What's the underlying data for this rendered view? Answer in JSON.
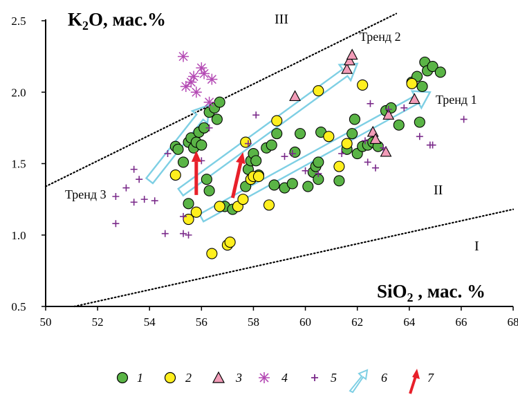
{
  "chart_data": {
    "type": "scatter",
    "xlabel": "SiO2 , мас. %",
    "ylabel": "K2O, мас.%",
    "xlim": [
      50,
      68
    ],
    "ylim": [
      0.5,
      2.5
    ],
    "x_ticks": [
      "50",
      "52",
      "54",
      "56",
      "58",
      "60",
      "62",
      "64",
      "66",
      "68"
    ],
    "y_ticks": [
      "0.5",
      "1.0",
      "1.5",
      "2.0",
      "2.5"
    ],
    "regions": [
      "I",
      "II",
      "III"
    ],
    "trend_labels": [
      "Тренд 1",
      "Тренд 2",
      "Тренд 3"
    ],
    "legend_numbers": [
      "1",
      "2",
      "3",
      "4",
      "5",
      "6",
      "7"
    ],
    "colors": {
      "green": "#5ab446",
      "yellow": "#ffef1e",
      "pink": "#f29cb8",
      "magenta": "#b44ab4",
      "purple": "#7a2a8a",
      "cyan": "#7ecfe4",
      "red": "#e8202a"
    },
    "series": [
      {
        "marker": "green-circle",
        "points": [
          [
            55.0,
            1.62
          ],
          [
            55.1,
            1.6
          ],
          [
            55.3,
            1.51
          ],
          [
            55.5,
            1.22
          ],
          [
            55.5,
            1.65
          ],
          [
            55.6,
            1.68
          ],
          [
            55.7,
            1.61
          ],
          [
            55.8,
            1.65
          ],
          [
            56.0,
            1.63
          ],
          [
            55.9,
            1.72
          ],
          [
            56.1,
            1.75
          ],
          [
            56.3,
            1.86
          ],
          [
            56.5,
            1.89
          ],
          [
            56.6,
            1.81
          ],
          [
            56.7,
            1.93
          ],
          [
            56.2,
            1.39
          ],
          [
            56.3,
            1.31
          ],
          [
            56.9,
            1.2
          ],
          [
            57.2,
            1.18
          ],
          [
            57.7,
            1.34
          ],
          [
            57.8,
            1.46
          ],
          [
            57.9,
            1.52
          ],
          [
            58.0,
            1.57
          ],
          [
            58.1,
            1.52
          ],
          [
            58.2,
            1.42
          ],
          [
            58.5,
            1.61
          ],
          [
            58.7,
            1.63
          ],
          [
            58.8,
            1.35
          ],
          [
            58.9,
            1.71
          ],
          [
            59.2,
            1.33
          ],
          [
            59.5,
            1.36
          ],
          [
            59.6,
            1.58
          ],
          [
            59.8,
            1.71
          ],
          [
            60.1,
            1.34
          ],
          [
            60.3,
            1.44
          ],
          [
            60.4,
            1.48
          ],
          [
            60.5,
            1.51
          ],
          [
            60.5,
            1.39
          ],
          [
            60.6,
            1.72
          ],
          [
            61.3,
            1.38
          ],
          [
            61.6,
            1.6
          ],
          [
            61.8,
            1.71
          ],
          [
            61.9,
            1.81
          ],
          [
            62.0,
            1.57
          ],
          [
            62.2,
            1.62
          ],
          [
            62.4,
            1.63
          ],
          [
            62.6,
            1.65
          ],
          [
            62.8,
            1.62
          ],
          [
            63.1,
            1.87
          ],
          [
            63.3,
            1.89
          ],
          [
            63.6,
            1.77
          ],
          [
            64.1,
            2.07
          ],
          [
            64.3,
            2.11
          ],
          [
            64.4,
            1.79
          ],
          [
            64.5,
            2.04
          ],
          [
            64.6,
            2.21
          ],
          [
            64.7,
            2.15
          ],
          [
            64.9,
            2.18
          ],
          [
            65.2,
            2.14
          ]
        ]
      },
      {
        "marker": "yellow-circle",
        "points": [
          [
            55.0,
            1.42
          ],
          [
            55.5,
            1.11
          ],
          [
            55.8,
            1.16
          ],
          [
            56.4,
            0.87
          ],
          [
            56.7,
            1.2
          ],
          [
            57.0,
            0.93
          ],
          [
            57.1,
            0.95
          ],
          [
            57.4,
            1.2
          ],
          [
            57.6,
            1.25
          ],
          [
            57.7,
            1.65
          ],
          [
            57.9,
            1.39
          ],
          [
            58.0,
            1.41
          ],
          [
            58.2,
            1.41
          ],
          [
            58.6,
            1.21
          ],
          [
            58.9,
            1.8
          ],
          [
            60.5,
            2.01
          ],
          [
            60.9,
            1.69
          ],
          [
            61.3,
            1.48
          ],
          [
            61.6,
            1.64
          ],
          [
            62.2,
            2.05
          ],
          [
            64.1,
            2.06
          ]
        ]
      },
      {
        "marker": "pink-triangle",
        "points": [
          [
            59.6,
            1.97
          ],
          [
            61.6,
            2.16
          ],
          [
            61.7,
            2.22
          ],
          [
            61.8,
            2.26
          ],
          [
            62.6,
            1.72
          ],
          [
            62.7,
            1.67
          ],
          [
            63.1,
            1.58
          ],
          [
            63.2,
            1.84
          ],
          [
            64.2,
            1.95
          ]
        ]
      },
      {
        "marker": "magenta-star",
        "points": [
          [
            55.3,
            2.25
          ],
          [
            55.7,
            2.11
          ],
          [
            55.4,
            2.04
          ],
          [
            55.8,
            2.0
          ],
          [
            56.0,
            2.17
          ],
          [
            56.1,
            2.13
          ],
          [
            56.4,
            2.09
          ],
          [
            55.6,
            2.07
          ],
          [
            56.3,
            1.93
          ]
        ]
      },
      {
        "marker": "purple-plus",
        "points": [
          [
            52.7,
            1.08
          ],
          [
            52.7,
            1.27
          ],
          [
            53.1,
            1.33
          ],
          [
            53.4,
            1.23
          ],
          [
            53.4,
            1.46
          ],
          [
            53.6,
            1.39
          ],
          [
            53.8,
            1.25
          ],
          [
            54.2,
            1.24
          ],
          [
            54.6,
            1.01
          ],
          [
            54.7,
            1.57
          ],
          [
            55.3,
            1.01
          ],
          [
            55.5,
            1.0
          ],
          [
            55.3,
            1.13
          ],
          [
            56.0,
            1.52
          ],
          [
            56.3,
            1.75
          ],
          [
            57.8,
            1.64
          ],
          [
            58.1,
            1.84
          ],
          [
            59.2,
            1.55
          ],
          [
            59.5,
            1.57
          ],
          [
            60.0,
            1.45
          ],
          [
            60.5,
            1.43
          ],
          [
            61.4,
            1.57
          ],
          [
            62.3,
            1.66
          ],
          [
            62.4,
            1.51
          ],
          [
            62.5,
            1.92
          ],
          [
            62.7,
            1.47
          ],
          [
            63.0,
            1.61
          ],
          [
            63.2,
            1.88
          ],
          [
            63.8,
            1.89
          ],
          [
            64.4,
            1.69
          ],
          [
            64.8,
            1.63
          ],
          [
            64.9,
            1.63
          ],
          [
            66.1,
            1.81
          ]
        ]
      }
    ],
    "trend_arrows": [
      {
        "name": "trend-3-arrow",
        "from": [
          54.0,
          1.38
        ],
        "to": [
          56.3,
          1.91
        ]
      },
      {
        "name": "trend-2-arrow",
        "from": [
          55.2,
          1.3
        ],
        "to": [
          62.0,
          2.2
        ]
      },
      {
        "name": "trend-1-arrow",
        "from": [
          56.0,
          1.12
        ],
        "to": [
          64.8,
          2.0
        ]
      }
    ],
    "red_arrows": [
      {
        "name": "red-arrow-1",
        "from": [
          55.8,
          1.28
        ],
        "to": [
          55.8,
          1.59
        ]
      },
      {
        "name": "red-arrow-2",
        "from": [
          57.2,
          1.26
        ],
        "to": [
          57.6,
          1.58
        ]
      }
    ],
    "boundary_lines": [
      {
        "name": "boundary-I-II",
        "from": [
          51.1,
          0.5
        ],
        "to": [
          68.0,
          1.18
        ]
      },
      {
        "name": "boundary-II-III",
        "from": [
          50.0,
          1.34
        ],
        "to": [
          63.5,
          2.55
        ]
      }
    ]
  }
}
